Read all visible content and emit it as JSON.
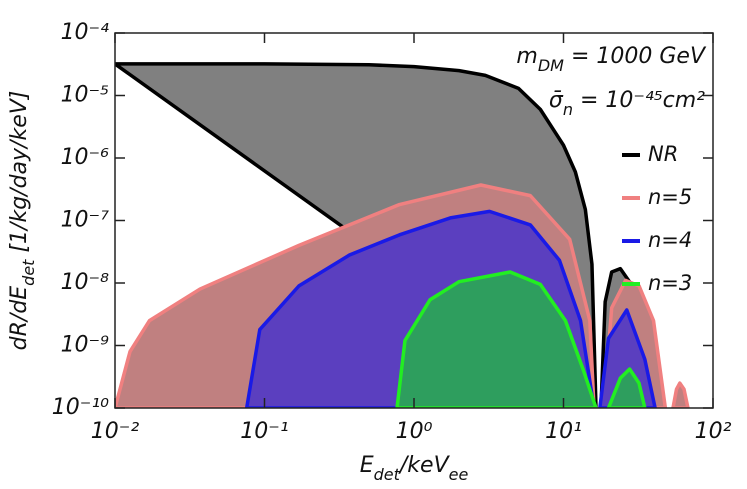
{
  "chart_data": {
    "type": "area",
    "log_x": true,
    "log_y": true,
    "xlim": [
      0.01,
      100
    ],
    "ylim": [
      1e-10,
      0.0001
    ],
    "xticks": [
      {
        "value": 0.01,
        "label": "10⁻²"
      },
      {
        "value": 0.1,
        "label": "10⁻¹"
      },
      {
        "value": 1,
        "label": "10⁰"
      },
      {
        "value": 10,
        "label": "10¹"
      },
      {
        "value": 100,
        "label": "10²"
      }
    ],
    "yticks": [
      {
        "value": 1e-10,
        "label": "10⁻¹⁰"
      },
      {
        "value": 1e-09,
        "label": "10⁻⁹"
      },
      {
        "value": 1e-08,
        "label": "10⁻⁸"
      },
      {
        "value": 1e-07,
        "label": "10⁻⁷"
      },
      {
        "value": 1e-06,
        "label": "10⁻⁶"
      },
      {
        "value": 1e-05,
        "label": "10⁻⁵"
      },
      {
        "value": 0.0001,
        "label": "10⁻⁴"
      }
    ],
    "xlabel": [
      {
        "text": "E"
      },
      {
        "text": "det",
        "shift": "sub"
      },
      {
        "text": "/keV"
      },
      {
        "text": "ee",
        "shift": "sub"
      }
    ],
    "ylabel": [
      {
        "text": "dR/dE"
      },
      {
        "text": "det",
        "shift": "sub"
      },
      {
        "text": " [1/kg/day/keV]"
      }
    ],
    "annotations": [
      [
        {
          "text": "m"
        },
        {
          "text": "DM",
          "shift": "sub"
        },
        {
          "text": " = 1000 GeV"
        }
      ],
      [
        {
          "text": "σ̄"
        },
        {
          "text": "n",
          "shift": "sub"
        },
        {
          "text": " = 10⁻⁴⁵cm²"
        }
      ]
    ],
    "legend": "right",
    "series": [
      {
        "name": "NR",
        "color": "#000000",
        "fill": "#808080",
        "x": [
          0.01,
          0.1,
          0.5,
          1,
          2,
          3,
          5,
          7,
          10,
          12,
          14,
          15.5,
          16.5,
          null,
          17.8,
          19,
          21,
          24,
          28,
          33,
          38,
          41
        ],
        "values": [
          3.2e-05,
          3.2e-05,
          3.1e-05,
          2.9e-05,
          2.5e-05,
          2.1e-05,
          1.3e-05,
          6e-06,
          1.6e-06,
          6e-07,
          1.5e-07,
          2e-08,
          1e-10,
          null,
          1e-10,
          5e-09,
          1.5e-08,
          1.7e-08,
          1e-08,
          2e-09,
          3e-10,
          1e-10
        ]
      },
      {
        "name": "n=5",
        "color": "#f08080",
        "fill": "#c08080",
        "x": [
          0.01,
          0.0126,
          0.017,
          0.037,
          0.17,
          0.8,
          2.8,
          6,
          11,
          15,
          16,
          null,
          18.6,
          21,
          26,
          32,
          40,
          48,
          null,
          54,
          57,
          60,
          64,
          68
        ],
        "values": [
          1e-10,
          8e-10,
          2.5e-09,
          8e-09,
          4e-08,
          1.8e-07,
          3.7e-07,
          2.5e-07,
          5e-08,
          2.5e-09,
          1e-10,
          null,
          1e-10,
          4e-09,
          1.1e-08,
          9e-09,
          2.5e-09,
          1e-10,
          null,
          1e-10,
          2e-10,
          2.5e-10,
          2e-10,
          1e-10
        ]
      },
      {
        "name": "n=4",
        "color": "#1a1ae6",
        "fill": "#5b3fbf",
        "x": [
          0.076,
          0.093,
          0.17,
          0.37,
          0.8,
          1.75,
          3.2,
          6,
          9.4,
          13,
          16,
          null,
          17.5,
          20,
          26.5,
          35,
          41
        ],
        "values": [
          1e-10,
          1.8e-09,
          9e-09,
          2.8e-08,
          5.9e-08,
          1.1e-07,
          1.4e-07,
          8.5e-08,
          2.3e-08,
          2.5e-09,
          1e-10,
          null,
          1e-10,
          1.3e-09,
          3.7e-09,
          6e-10,
          1e-10
        ]
      },
      {
        "name": "n=3",
        "color": "#22ee22",
        "fill": "#2e9e5e",
        "x": [
          0.77,
          0.87,
          1.28,
          2,
          4.4,
          7,
          10.3,
          13.6,
          16.5,
          null,
          20,
          24,
          27.7,
          32,
          35
        ],
        "values": [
          1e-10,
          1.2e-09,
          5.4e-09,
          1.05e-08,
          1.5e-08,
          9.5e-09,
          2.5e-09,
          4e-10,
          1e-10,
          null,
          1e-10,
          3e-10,
          4.2e-10,
          2.5e-10,
          1e-10
        ]
      }
    ]
  }
}
